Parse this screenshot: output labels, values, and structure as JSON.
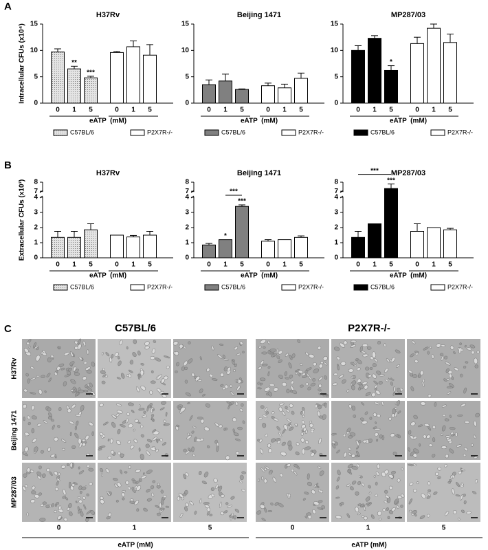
{
  "panel_labels": [
    "A",
    "B",
    "C"
  ],
  "chart_data": [
    {
      "type": "bar",
      "title": "H37Rv",
      "ylabel": "Intracellular CFUs (x10⁴)",
      "xlabel": "eATP  (mM)",
      "categories": [
        "0",
        "1",
        "5"
      ],
      "series": [
        {
          "name": "C57BL/6",
          "color": "#d9d9d9",
          "pattern": "dots",
          "values": [
            9.7,
            6.5,
            4.8
          ],
          "errors": [
            0.6,
            0.5,
            0.3
          ],
          "annotations": [
            null,
            "**",
            "***"
          ]
        },
        {
          "name": "P2X7R-/-",
          "color": "#ffffff",
          "values": [
            9.6,
            10.7,
            9.1
          ],
          "errors": [
            0.2,
            1.1,
            2.0
          ]
        }
      ],
      "ylim": [
        0,
        15
      ],
      "yticks": [
        0,
        5,
        10,
        15
      ],
      "legend": "bottom"
    },
    {
      "type": "bar",
      "title": "Beijing 1471",
      "xlabel": "eATP  (mM)",
      "categories": [
        "0",
        "1",
        "5"
      ],
      "series": [
        {
          "name": "C57BL/6",
          "color": "#808080",
          "values": [
            3.5,
            4.2,
            2.6
          ],
          "errors": [
            0.9,
            1.3,
            0.1
          ]
        },
        {
          "name": "P2X7R-/-",
          "color": "#ffffff",
          "values": [
            3.3,
            2.9,
            4.7
          ],
          "errors": [
            0.5,
            0.7,
            1.0
          ]
        }
      ],
      "ylim": [
        0,
        15
      ],
      "yticks": [
        0,
        5,
        10,
        15
      ],
      "legend": "bottom"
    },
    {
      "type": "bar",
      "title": "MP287/03",
      "xlabel": "eATP  (mM)",
      "categories": [
        "0",
        "1",
        "5"
      ],
      "series": [
        {
          "name": "C57BL/6",
          "color": "#000000",
          "values": [
            10.0,
            12.3,
            6.2
          ],
          "errors": [
            0.9,
            0.5,
            0.9
          ],
          "annotations": [
            null,
            null,
            "*"
          ]
        },
        {
          "name": "P2X7R-/-",
          "color": "#ffffff",
          "values": [
            11.3,
            14.2,
            11.5
          ],
          "errors": [
            1.2,
            0.8,
            1.6
          ]
        }
      ],
      "ylim": [
        0,
        15
      ],
      "yticks": [
        0,
        5,
        10,
        15
      ],
      "legend": "bottom"
    },
    {
      "type": "bar",
      "title": "H37Rv",
      "ylabel": "Extracellular CFUs (x10³)",
      "xlabel": "eATP  (mM)",
      "categories": [
        "0",
        "1",
        "5"
      ],
      "series": [
        {
          "name": "C57BL/6",
          "color": "#d9d9d9",
          "pattern": "dots",
          "values": [
            1.35,
            1.35,
            1.85
          ],
          "errors": [
            0.4,
            0.4,
            0.4
          ]
        },
        {
          "name": "P2X7R-/-",
          "color": "#ffffff",
          "values": [
            1.5,
            1.38,
            1.5
          ],
          "errors": [
            null,
            0.1,
            0.25
          ]
        }
      ],
      "ylim": [
        0,
        8
      ],
      "yticks": [
        0,
        1,
        2,
        3,
        4,
        7,
        8
      ],
      "y_break": [
        4,
        7
      ],
      "legend": "bottom"
    },
    {
      "type": "bar",
      "title": "Beijing 1471",
      "xlabel": "eATP  (mM)",
      "categories": [
        "0",
        "1",
        "5"
      ],
      "series": [
        {
          "name": "C57BL/6",
          "color": "#808080",
          "values": [
            0.85,
            1.2,
            3.4
          ],
          "errors": [
            0.1,
            null,
            0.1
          ],
          "annotations": [
            null,
            "*",
            "***"
          ]
        },
        {
          "name": "P2X7R-/-",
          "color": "#ffffff",
          "values": [
            1.1,
            1.2,
            1.35
          ],
          "errors": [
            0.1,
            null,
            0.1
          ]
        }
      ],
      "brackets": [
        {
          "text": "***",
          "from": "1",
          "to": "5"
        }
      ],
      "ylim": [
        0,
        8
      ],
      "yticks": [
        0,
        1,
        2,
        3,
        4,
        7,
        8
      ],
      "y_break": [
        4,
        7
      ],
      "legend": "bottom"
    },
    {
      "type": "bar",
      "title": "MP287/03",
      "xlabel": "eATP  (mM)",
      "categories": [
        "0",
        "1",
        "5"
      ],
      "series": [
        {
          "name": "C57BL/6",
          "color": "#000000",
          "values": [
            1.35,
            2.25,
            7.3
          ],
          "errors": [
            0.4,
            null,
            0.5
          ],
          "annotations": [
            null,
            null,
            "***"
          ]
        },
        {
          "name": "P2X7R-/-",
          "color": "#ffffff",
          "values": [
            1.75,
            2.0,
            1.85
          ],
          "errors": [
            0.5,
            null,
            0.1
          ]
        }
      ],
      "brackets": [
        {
          "text": "***",
          "from": "0",
          "to": "5"
        }
      ],
      "ylim": [
        0,
        8
      ],
      "yticks": [
        0,
        1,
        2,
        3,
        4,
        7,
        8
      ],
      "y_break": [
        4,
        7
      ],
      "legend": "bottom"
    }
  ],
  "micrographs": {
    "groups": [
      "C57BL/6",
      "P2X7R-/-"
    ],
    "rows": [
      "H37Rv",
      "Beijing 1471",
      "MP287/03"
    ],
    "columns": [
      "0",
      "1",
      "5"
    ],
    "xlabel": "eATP (mM)"
  }
}
